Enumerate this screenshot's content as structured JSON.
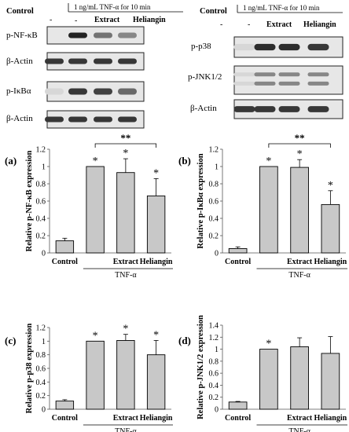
{
  "blots": {
    "left": {
      "header": {
        "control": "Control",
        "treatment": "1 ng/mL TNF-α for 10 min",
        "dash": "-",
        "minus": "-",
        "extract": "Extract",
        "heliangin": "Heliangin"
      },
      "bands": [
        {
          "label": "p-NF-κB",
          "intensity": [
            0.0,
            0.95,
            0.55,
            0.45
          ]
        },
        {
          "label": "β-Actin",
          "intensity": [
            0.85,
            0.85,
            0.85,
            0.85
          ]
        },
        {
          "label": "p-IκBα",
          "intensity": [
            0.05,
            0.85,
            0.8,
            0.6
          ]
        },
        {
          "label": "β-Actin",
          "intensity": [
            0.85,
            0.85,
            0.85,
            0.85
          ]
        }
      ]
    },
    "right": {
      "header": {
        "control": "Control",
        "treatment": "1 ng/mL TNF-α for 10 min",
        "dash": "-",
        "minus": "-",
        "extract": "Extract",
        "heliangin": "Heliangin"
      },
      "bands": [
        {
          "label": "p-p38",
          "intensity": [
            0.05,
            0.9,
            0.9,
            0.85
          ]
        },
        {
          "label": "p-JNK1/2",
          "intensity": [
            0.05,
            0.45,
            0.45,
            0.45
          ]
        },
        {
          "label": "β-Actin",
          "intensity": [
            0.85,
            0.85,
            0.85,
            0.85
          ]
        }
      ]
    }
  },
  "chart_data": [
    {
      "type": "bar",
      "panel_label": "(a)",
      "categories": [
        "Control",
        "",
        "Extract",
        "Heliangin"
      ],
      "values": [
        0.14,
        1.0,
        0.93,
        0.66
      ],
      "errors": [
        0.03,
        0.0,
        0.16,
        0.2
      ],
      "significance": [
        "",
        "*",
        "*",
        "*"
      ],
      "bracket": {
        "from": 1,
        "to": 3,
        "label": "**"
      },
      "group_label": "TNF-α",
      "ylabel": "Relative p-NF-κB expression",
      "ylim": [
        0,
        1.2
      ],
      "yticks": [
        "0",
        "0.2",
        "0.4",
        "0.6",
        "0.8",
        "1",
        "1.2"
      ]
    },
    {
      "type": "bar",
      "panel_label": "(b)",
      "categories": [
        "Control",
        "",
        "Extract",
        "Heliangin"
      ],
      "values": [
        0.05,
        1.0,
        0.99,
        0.56
      ],
      "errors": [
        0.02,
        0.0,
        0.09,
        0.16
      ],
      "significance": [
        "",
        "*",
        "*",
        "*"
      ],
      "bracket": {
        "from": 1,
        "to": 3,
        "label": "**"
      },
      "group_label": "TNF-α",
      "ylabel": "Relative p-IκBα expression",
      "ylim": [
        0,
        1.2
      ],
      "yticks": [
        "0",
        "0.2",
        "0.4",
        "0.6",
        "0.8",
        "1",
        "1.2"
      ]
    },
    {
      "type": "bar",
      "panel_label": "(c)",
      "categories": [
        "Control",
        "",
        "Extract",
        "Heliangin"
      ],
      "values": [
        0.12,
        1.0,
        1.01,
        0.8
      ],
      "errors": [
        0.02,
        0.0,
        0.09,
        0.21
      ],
      "significance": [
        "",
        "*",
        "*",
        "*"
      ],
      "group_label": "TNF-α",
      "ylabel": "Relative p-p38 expression",
      "ylim": [
        0,
        1.2
      ],
      "yticks": [
        "0",
        "0.2",
        "0.4",
        "0.6",
        "0.8",
        "1",
        "1.2"
      ]
    },
    {
      "type": "bar",
      "panel_label": "(d)",
      "categories": [
        "Control",
        "",
        "Extract",
        "Heliangin"
      ],
      "values": [
        0.12,
        1.0,
        1.04,
        0.93
      ],
      "errors": [
        0.01,
        0.0,
        0.15,
        0.28
      ],
      "significance": [
        "",
        "*",
        "",
        ""
      ],
      "group_label": "TNF-α",
      "ylabel": "Relative p-JNK1/2 expression",
      "ylim": [
        0,
        1.4
      ],
      "yticks": [
        "0",
        "0.2",
        "0.4",
        "0.6",
        "0.8",
        "1",
        "1.2",
        "1.4"
      ]
    }
  ]
}
